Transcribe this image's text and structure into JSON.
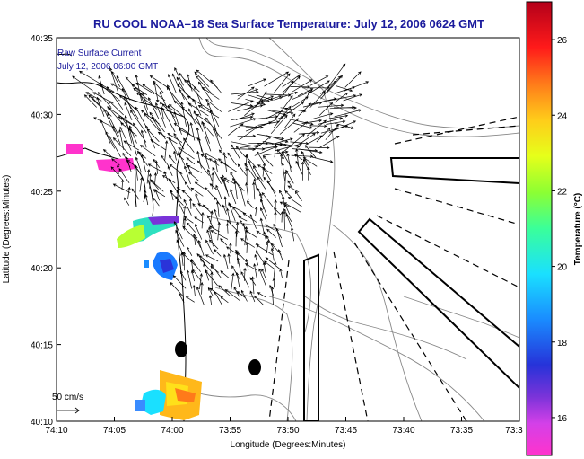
{
  "chart_data": {
    "type": "scatter",
    "title": "RU COOL  NOAA–18  Sea Surface Temperature:  July 12, 2006 0624 GMT",
    "xlabel": "Longitude (Degrees:Minutes)",
    "ylabel": "Latitude (Degrees:Minutes)",
    "x_ticks": [
      "74:10",
      "74:05",
      "74:00",
      "73:55",
      "73:50",
      "73:45",
      "73:40",
      "73:35",
      "73:3"
    ],
    "y_ticks": [
      "40:10",
      "40:15",
      "40:20",
      "40:25",
      "40:30",
      "40:35"
    ],
    "xlim_minutes_west": [
      10,
      30
    ],
    "ylim_minutes_north": [
      10,
      35
    ],
    "legend_title": "Raw Surface Current",
    "legend_time": "July 12, 2006 06:00 GMT",
    "scale_label": "50 cm/s",
    "colorbar": {
      "label": "Temperature (°C)",
      "ticks": [
        "16",
        "18",
        "20",
        "22",
        "24",
        "26"
      ],
      "range": [
        15,
        27
      ]
    },
    "colors": {
      "title": "#1a1a9c",
      "coast": "#000000",
      "contour": "#888888"
    }
  }
}
